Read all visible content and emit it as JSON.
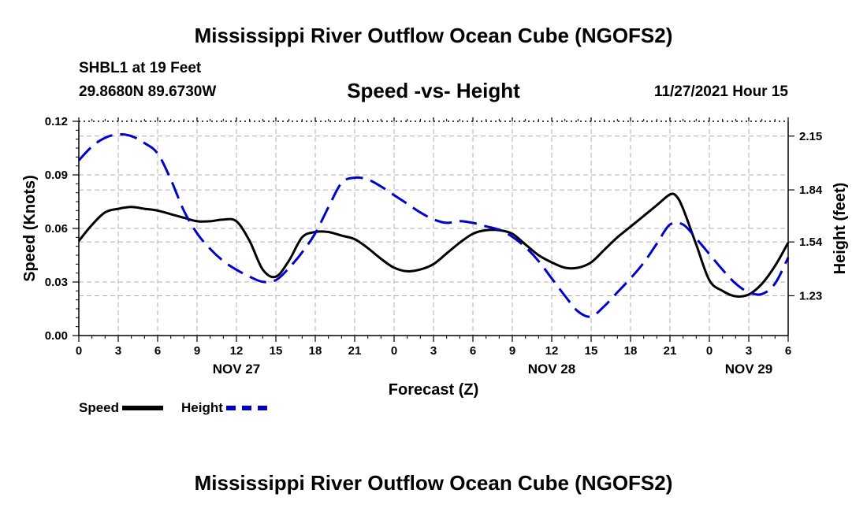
{
  "header": {
    "title": "Mississippi River Outflow Ocean Cube (NGOFS2)",
    "station": "SHBL1 at 19 Feet",
    "coordinates": "29.8680N  89.6730W",
    "subtitle": "Speed -vs- Height",
    "timestamp": "11/27/2021 Hour 15"
  },
  "footer": {
    "title": "Mississippi River Outflow Ocean Cube (NGOFS2)"
  },
  "legend": {
    "speed_label": "Speed",
    "height_label": "Height"
  },
  "colors": {
    "speed": "#000000",
    "height": "#0000cc",
    "grid": "#b0b0b0"
  },
  "chart_data": {
    "type": "line",
    "title": "Speed -vs- Height",
    "xlabel": "Forecast (Z)",
    "ylabel": "Speed (Knots)",
    "y2label": "Height (feet)",
    "xlim": [
      0,
      54
    ],
    "ylim": [
      0,
      0.12
    ],
    "y2lim": [
      1.0006,
      2.2352
    ],
    "x_ticks": [
      {
        "x": 0,
        "label": "0"
      },
      {
        "x": 3,
        "label": "3"
      },
      {
        "x": 6,
        "label": "6"
      },
      {
        "x": 9,
        "label": "9"
      },
      {
        "x": 12,
        "label": "12"
      },
      {
        "x": 15,
        "label": "15"
      },
      {
        "x": 18,
        "label": "18"
      },
      {
        "x": 21,
        "label": "21"
      },
      {
        "x": 24,
        "label": "0"
      },
      {
        "x": 27,
        "label": "3"
      },
      {
        "x": 30,
        "label": "6"
      },
      {
        "x": 33,
        "label": "9"
      },
      {
        "x": 36,
        "label": "12"
      },
      {
        "x": 39,
        "label": "15"
      },
      {
        "x": 42,
        "label": "18"
      },
      {
        "x": 45,
        "label": "21"
      },
      {
        "x": 48,
        "label": "0"
      },
      {
        "x": 51,
        "label": "3"
      },
      {
        "x": 54,
        "label": "6"
      }
    ],
    "date_labels": [
      {
        "x": 12,
        "label": "NOV 27"
      },
      {
        "x": 36,
        "label": "NOV 28"
      },
      {
        "x": 51,
        "label": "NOV 29"
      }
    ],
    "y_ticks": [
      {
        "value": 0.0,
        "label": "0.00"
      },
      {
        "value": 0.03,
        "label": "0.03"
      },
      {
        "value": 0.06,
        "label": "0.06"
      },
      {
        "value": 0.09,
        "label": "0.09"
      },
      {
        "value": 0.12,
        "label": "0.12"
      }
    ],
    "y2_ticks": [
      {
        "value": 1.23,
        "label": "1.23"
      },
      {
        "value": 1.54,
        "label": "1.54"
      },
      {
        "value": 1.84,
        "label": "1.84"
      },
      {
        "value": 2.15,
        "label": "2.15"
      }
    ],
    "series": [
      {
        "name": "Speed",
        "axis": "left",
        "dash": "solid",
        "x": [
          0,
          1,
          2,
          3,
          4,
          5,
          6,
          7,
          8,
          9,
          10,
          11,
          12,
          13,
          14,
          15,
          16,
          17,
          18,
          19,
          20,
          21,
          22,
          23,
          24,
          25,
          26,
          27,
          28,
          29,
          30,
          31,
          32,
          33,
          34,
          35,
          36,
          37,
          38,
          39,
          40,
          41,
          42,
          43,
          44,
          45,
          45.5,
          46,
          47,
          48,
          49,
          50,
          51,
          52,
          53,
          54
        ],
        "y": [
          0.053,
          0.062,
          0.069,
          0.071,
          0.072,
          0.071,
          0.07,
          0.068,
          0.066,
          0.064,
          0.064,
          0.065,
          0.064,
          0.053,
          0.037,
          0.033,
          0.042,
          0.055,
          0.058,
          0.058,
          0.056,
          0.054,
          0.049,
          0.043,
          0.038,
          0.036,
          0.037,
          0.04,
          0.046,
          0.052,
          0.057,
          0.059,
          0.059,
          0.057,
          0.051,
          0.045,
          0.041,
          0.038,
          0.038,
          0.041,
          0.048,
          0.055,
          0.061,
          0.067,
          0.073,
          0.079,
          0.078,
          0.071,
          0.051,
          0.031,
          0.025,
          0.022,
          0.023,
          0.029,
          0.039,
          0.052
        ]
      },
      {
        "name": "Height",
        "axis": "right",
        "dash": "dashed",
        "x": [
          0,
          1,
          2,
          3,
          4,
          5,
          6,
          7,
          8,
          9,
          10,
          11,
          12,
          13,
          14,
          15,
          16,
          17,
          18,
          19,
          20,
          21,
          22,
          23,
          24,
          25,
          26,
          27,
          28,
          29,
          30,
          31,
          32,
          33,
          34,
          35,
          36,
          37,
          38,
          39,
          40,
          41,
          42,
          43,
          44,
          45,
          46,
          47,
          48,
          49,
          50,
          51,
          52,
          53,
          54
        ],
        "y": [
          2.01,
          2.09,
          2.14,
          2.16,
          2.15,
          2.11,
          2.05,
          1.9,
          1.72,
          1.59,
          1.5,
          1.43,
          1.38,
          1.34,
          1.31,
          1.32,
          1.39,
          1.48,
          1.59,
          1.74,
          1.88,
          1.91,
          1.9,
          1.86,
          1.81,
          1.76,
          1.71,
          1.67,
          1.65,
          1.66,
          1.65,
          1.63,
          1.61,
          1.57,
          1.51,
          1.43,
          1.33,
          1.23,
          1.14,
          1.11,
          1.17,
          1.25,
          1.33,
          1.42,
          1.53,
          1.64,
          1.64,
          1.56,
          1.47,
          1.38,
          1.3,
          1.25,
          1.24,
          1.3,
          1.45
        ]
      }
    ]
  }
}
